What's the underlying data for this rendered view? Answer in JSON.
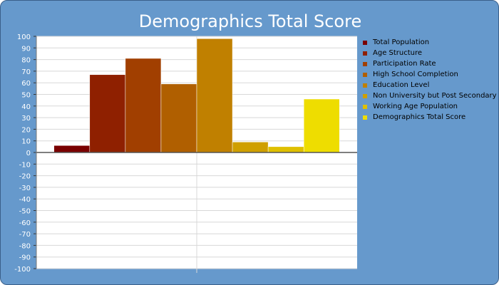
{
  "chart_data": {
    "type": "bar",
    "title": "Demographics Total Score",
    "xlabel": "",
    "ylabel": "",
    "ylim": [
      -100,
      100
    ],
    "yticks": [
      100,
      90,
      80,
      70,
      60,
      50,
      40,
      30,
      20,
      10,
      0,
      -10,
      -20,
      -30,
      -40,
      -50,
      -60,
      -70,
      -80,
      -90,
      -100
    ],
    "grid": true,
    "legend_position": "right",
    "series": [
      {
        "name": "Total Population",
        "value": 6,
        "color": "#7a0000"
      },
      {
        "name": "Age Structure",
        "value": 67,
        "color": "#8f2000"
      },
      {
        "name": "Participation Rate",
        "value": 81,
        "color": "#a13f00"
      },
      {
        "name": "High School Completion",
        "value": 59,
        "color": "#b05f00"
      },
      {
        "name": "Education Level",
        "value": 98,
        "color": "#c08000"
      },
      {
        "name": "Non University but Post Secondary",
        "value": 9,
        "color": "#cf9f00"
      },
      {
        "name": "Working Age Population",
        "value": 5,
        "color": "#dfbf00"
      },
      {
        "name": "Demographics Total Score",
        "value": 46,
        "color": "#eedd00"
      }
    ]
  }
}
